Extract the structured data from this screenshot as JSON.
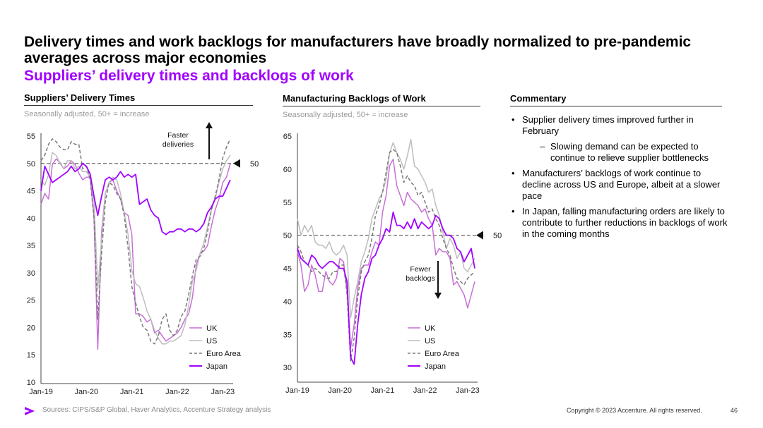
{
  "header": {
    "title": "Delivery times and work backlogs for manufacturers have broadly normalized to pre-pandemic averages across major economies",
    "subtitle": "Suppliers’ delivery times and backlogs of work"
  },
  "commentary": {
    "heading": "Commentary",
    "bullets": [
      {
        "level": 1,
        "text": "Supplier delivery times improved further in February"
      },
      {
        "level": 2,
        "text": "Slowing demand can be expected to continue to relieve supplier bottlenecks"
      },
      {
        "level": 1,
        "text": "Manufacturers’ backlogs of work continue to decline across US and Europe, albeit at a slower pace"
      },
      {
        "level": 1,
        "text": "In Japan, falling manufacturing orders are likely to contribute to further reductions in backlogs of work in the coming months"
      }
    ]
  },
  "footer": {
    "sources": "Sources: CIPS/S&P Global, Haver Analytics, Accenture Strategy analysis",
    "copyright": "Copyright © 2023 Accenture. All rights reserved.",
    "page_number": "46"
  },
  "colors": {
    "uk": "#c86ed8",
    "us": "#bdbdbd",
    "euro_area": "#7a7a7a",
    "japan": "#a100ff",
    "accent": "#a100ff"
  },
  "chart_data": [
    {
      "type": "line",
      "title": "Suppliers’ Delivery Times",
      "subtitle": "Seasonally adjusted, 50+ = increase",
      "x_ticks": [
        "Jan-19",
        "Jan-20",
        "Jan-21",
        "Jan-22",
        "Jan-23"
      ],
      "x_range": [
        "Jan-19",
        "Feb-23"
      ],
      "ylim": [
        10,
        55
      ],
      "y_ticks": [
        10,
        15,
        20,
        25,
        30,
        35,
        40,
        45,
        50,
        55
      ],
      "reference_line": {
        "value": 50,
        "label": "50"
      },
      "annotation": {
        "text": [
          "Faster",
          "deliveries"
        ],
        "arrow": "up"
      },
      "legend": [
        "UK",
        "US",
        "Euro Area",
        "Japan"
      ],
      "series": [
        {
          "name": "UK",
          "style": "solid",
          "values": [
            42.5,
            44.5,
            43.5,
            49.8,
            50.8,
            50.2,
            49.0,
            49.5,
            50.5,
            49.8,
            48.2,
            47.0,
            47.5,
            47.5,
            40.5,
            16.0,
            37.5,
            44.5,
            46.5,
            47.0,
            45.0,
            43.5,
            41.0,
            40.5,
            37.0,
            22.5,
            22.5,
            22.0,
            21.0,
            21.5,
            19.0,
            19.5,
            18.5,
            17.5,
            18.0,
            18.5,
            19.0,
            20.0,
            21.5,
            22.5,
            25.5,
            31.5,
            33.5,
            34.0,
            35.0,
            38.5,
            41.5,
            43.5,
            46.5,
            47.5,
            50.0
          ]
        },
        {
          "name": "US",
          "style": "solid",
          "values": [
            47.0,
            46.0,
            48.0,
            52.0,
            51.5,
            50.0,
            49.0,
            50.5,
            50.5,
            49.0,
            49.5,
            48.5,
            48.5,
            47.5,
            43.5,
            27.0,
            36.0,
            44.5,
            46.5,
            47.5,
            47.0,
            44.5,
            41.0,
            37.0,
            30.5,
            28.0,
            27.5,
            25.5,
            23.0,
            21.5,
            19.5,
            18.0,
            17.0,
            17.0,
            17.5,
            17.5,
            18.0,
            18.5,
            20.5,
            24.0,
            28.5,
            30.5,
            33.5,
            35.5,
            38.5,
            41.5,
            43.5,
            46.5,
            49.0,
            50.5,
            51.5
          ]
        },
        {
          "name": "Euro Area",
          "style": "dashed",
          "values": [
            50.5,
            51.5,
            53.5,
            54.5,
            54.0,
            53.0,
            52.5,
            52.5,
            54.0,
            53.5,
            53.5,
            49.0,
            49.5,
            47.0,
            40.0,
            21.5,
            33.5,
            43.0,
            46.5,
            46.0,
            44.5,
            43.5,
            40.5,
            34.5,
            27.5,
            24.5,
            22.0,
            20.0,
            19.5,
            17.5,
            17.0,
            18.5,
            21.5,
            22.5,
            19.5,
            18.5,
            19.5,
            22.0,
            23.0,
            26.0,
            29.5,
            32.5,
            33.0,
            34.5,
            37.5,
            41.5,
            44.0,
            47.0,
            51.0,
            53.0,
            54.5
          ]
        },
        {
          "name": "Japan",
          "style": "solid",
          "values": [
            45.0,
            49.5,
            48.0,
            46.5,
            47.0,
            47.5,
            48.0,
            48.5,
            49.5,
            48.5,
            49.0,
            50.0,
            49.5,
            48.0,
            44.0,
            40.5,
            44.0,
            47.0,
            47.5,
            47.0,
            47.5,
            48.5,
            47.5,
            48.0,
            47.5,
            48.0,
            42.5,
            43.0,
            43.5,
            41.5,
            40.5,
            40.0,
            37.5,
            37.0,
            37.5,
            37.5,
            38.0,
            38.0,
            37.5,
            38.0,
            38.0,
            37.5,
            38.0,
            39.0,
            41.0,
            42.0,
            43.5,
            44.0,
            44.0,
            45.5,
            47.0
          ]
        }
      ]
    },
    {
      "type": "line",
      "title": "Manufacturing Backlogs of Work",
      "subtitle": "Seasonally adjusted, 50+ = increase",
      "x_ticks": [
        "Jan-19",
        "Jan-20",
        "Jan-21",
        "Jan-22",
        "Jan-23"
      ],
      "x_range": [
        "Jan-19",
        "Feb-23"
      ],
      "ylim": [
        28,
        65
      ],
      "y_ticks": [
        30,
        35,
        40,
        45,
        50,
        55,
        60,
        65
      ],
      "reference_line": {
        "value": 50,
        "label": "50"
      },
      "annotation": {
        "text": [
          "Fewer",
          "backlogs"
        ],
        "arrow": "down"
      },
      "legend": [
        "UK",
        "US",
        "Euro Area",
        "Japan"
      ],
      "series": [
        {
          "name": "UK",
          "style": "solid",
          "values": [
            47.5,
            45.5,
            41.5,
            42.5,
            45.5,
            44.0,
            41.5,
            41.5,
            44.5,
            43.0,
            42.5,
            43.5,
            46.5,
            46.0,
            41.5,
            33.0,
            36.5,
            42.0,
            45.0,
            45.5,
            45.5,
            47.5,
            49.0,
            48.5,
            53.5,
            56.0,
            60.5,
            61.5,
            57.5,
            56.0,
            54.5,
            56.5,
            55.5,
            55.0,
            54.5,
            53.5,
            54.0,
            52.5,
            51.5,
            47.0,
            48.0,
            47.5,
            47.5,
            46.5,
            42.5,
            43.0,
            42.0,
            41.0,
            39.0,
            41.0,
            43.0
          ]
        },
        {
          "name": "US",
          "style": "solid",
          "values": [
            52.5,
            50.0,
            51.5,
            50.5,
            51.5,
            49.0,
            48.5,
            48.5,
            48.0,
            49.0,
            47.5,
            47.0,
            47.5,
            48.5,
            47.0,
            37.5,
            40.5,
            43.0,
            46.0,
            47.5,
            49.5,
            52.5,
            54.0,
            55.5,
            56.5,
            58.5,
            62.5,
            64.0,
            62.5,
            61.5,
            60.0,
            62.0,
            64.5,
            60.5,
            60.0,
            59.0,
            58.0,
            56.5,
            57.0,
            54.5,
            53.0,
            50.5,
            48.0,
            49.5,
            48.5,
            46.5,
            47.5,
            45.0,
            44.5,
            45.5,
            46.5
          ]
        },
        {
          "name": "Euro Area",
          "style": "dashed",
          "values": [
            48.5,
            47.5,
            46.0,
            45.5,
            44.5,
            45.0,
            44.5,
            44.0,
            43.5,
            43.5,
            44.5,
            44.5,
            45.5,
            45.5,
            41.0,
            31.0,
            34.5,
            40.5,
            44.5,
            46.0,
            47.0,
            49.5,
            53.0,
            54.5,
            56.5,
            59.5,
            62.5,
            63.0,
            62.5,
            60.5,
            58.0,
            59.0,
            58.0,
            57.5,
            56.0,
            56.5,
            55.0,
            53.5,
            54.0,
            52.5,
            51.5,
            49.5,
            48.0,
            47.0,
            45.0,
            43.5,
            43.0,
            42.5,
            43.5,
            44.0,
            44.5
          ]
        },
        {
          "name": "Japan",
          "style": "solid",
          "values": [
            48.0,
            46.5,
            46.0,
            45.5,
            47.0,
            46.5,
            45.5,
            45.0,
            45.5,
            46.0,
            46.0,
            45.5,
            45.0,
            45.0,
            43.0,
            31.5,
            30.5,
            36.5,
            41.0,
            43.5,
            44.5,
            46.5,
            47.0,
            48.5,
            49.5,
            51.0,
            50.5,
            53.5,
            51.5,
            51.5,
            51.0,
            52.0,
            51.0,
            52.5,
            51.0,
            52.0,
            51.5,
            51.0,
            51.5,
            53.0,
            52.5,
            51.0,
            50.0,
            50.0,
            49.5,
            48.0,
            47.5,
            46.0,
            47.0,
            48.0,
            45.0
          ]
        }
      ]
    }
  ]
}
